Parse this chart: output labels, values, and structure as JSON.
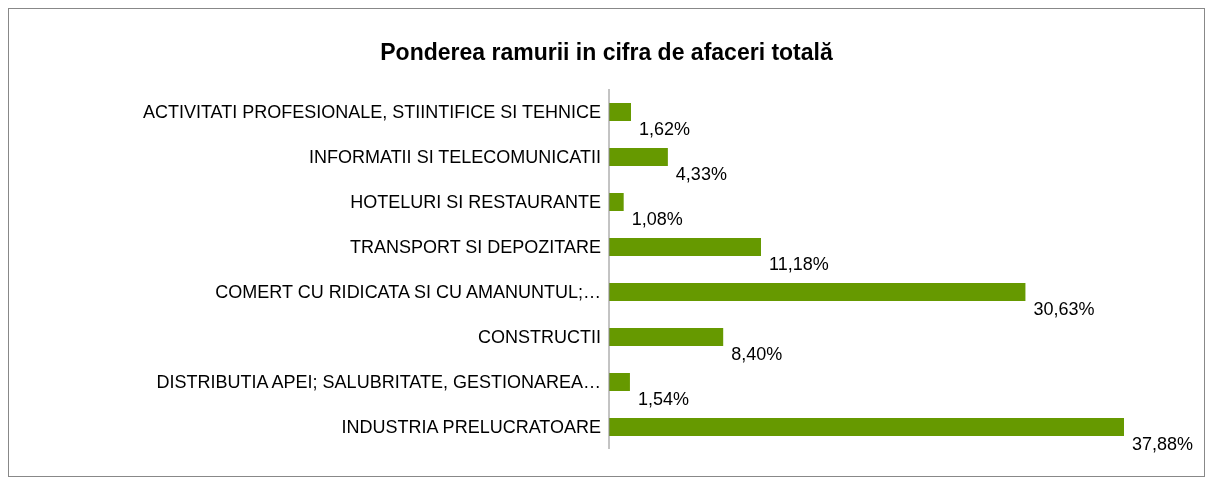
{
  "chart_data": {
    "type": "bar",
    "orientation": "horizontal",
    "title": "Ponderea ramurii in cifra de afaceri totală",
    "categories": [
      "ACTIVITATI PROFESIONALE, STIINTIFICE SI TEHNICE",
      "INFORMATII SI TELECOMUNICATII",
      "HOTELURI SI RESTAURANTE",
      "TRANSPORT SI DEPOZITARE",
      "COMERT CU RIDICATA SI CU AMANUNTUL;…",
      "CONSTRUCTII",
      "DISTRIBUTIA APEI; SALUBRITATE, GESTIONAREA…",
      "INDUSTRIA PRELUCRATOARE"
    ],
    "values": [
      1.62,
      4.33,
      1.08,
      11.18,
      30.63,
      8.4,
      1.54,
      37.88
    ],
    "value_labels": [
      "1,62%",
      "4,33%",
      "1,08%",
      "11,18%",
      "30,63%",
      "8,40%",
      "1,54%",
      "37,88%"
    ],
    "color": "#669900",
    "grid": false,
    "legend": false
  }
}
